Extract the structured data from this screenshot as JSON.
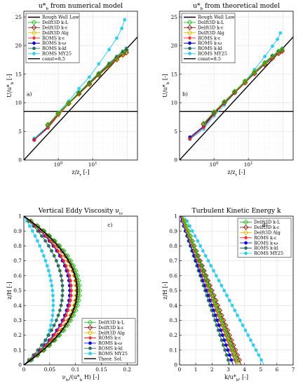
{
  "chart_data": [
    {
      "id": "a",
      "type": "line",
      "xscale": "log",
      "title": "u*_b from numerical model",
      "annotation": "a)",
      "xlabel": "z/z_r [-]",
      "ylabel": "U/u*_b [-]",
      "xlim": [
        0.1,
        200
      ],
      "ylim": [
        0,
        26
      ],
      "xticks": [
        {
          "v": 1,
          "label": "10^0"
        },
        {
          "v": 10,
          "label": "10^1"
        }
      ],
      "yticks": [
        0,
        5,
        10,
        15,
        20,
        25
      ],
      "legend_position": "top-left",
      "legend": [
        {
          "label": "Rough Wall Law",
          "color": "#000000",
          "marker": "none"
        },
        {
          "label": "Delft3D k-L",
          "color": "#22c222",
          "marker": "diamond"
        },
        {
          "label": "Delft3D k-ε",
          "color": "#8b1a1a",
          "marker": "diamond"
        },
        {
          "label": "Delft3D Alg",
          "color": "#e5b800",
          "marker": "diamond"
        },
        {
          "label": "ROMS k-ε",
          "color": "#ff1a1a",
          "marker": "star"
        },
        {
          "label": "ROMS k-ω",
          "color": "#0a0ad8",
          "marker": "circle"
        },
        {
          "label": "ROMS k-kl",
          "color": "#2f6f5f",
          "marker": "circle"
        },
        {
          "label": "ROMS MY25",
          "color": "#33ccf0",
          "marker": "circle"
        },
        {
          "label": "const=8.5",
          "color": "#000000",
          "marker": "none"
        }
      ],
      "series": [
        {
          "name": "Rough Wall Law",
          "x": [
            0.1,
            200
          ],
          "y": [
            0,
            21.5
          ]
        },
        {
          "name": "const=8.5",
          "x": [
            0.1,
            200
          ],
          "y": [
            8.5,
            8.5
          ]
        },
        {
          "name": "ROMS MY25",
          "x": [
            0.2,
            0.5,
            1,
            2,
            4,
            8,
            15,
            30,
            50,
            70,
            85
          ],
          "y": [
            3.8,
            5.9,
            8.3,
            10.3,
            12.5,
            14.5,
            16.8,
            19.3,
            21.3,
            23.0,
            24.5
          ]
        },
        {
          "name": "ROMS k-kl",
          "x": [
            0.2,
            0.5,
            1,
            2,
            4,
            8,
            15,
            30,
            50,
            75,
            95
          ],
          "y": [
            3.6,
            5.8,
            8.0,
            10.0,
            11.8,
            13.6,
            15.2,
            16.9,
            18.1,
            19.0,
            19.5
          ]
        },
        {
          "name": "ROMS k-ω",
          "x": [
            0.2,
            0.5,
            1,
            2,
            4,
            8,
            15,
            30,
            50,
            75,
            95
          ],
          "y": [
            3.5,
            5.7,
            7.9,
            9.9,
            11.7,
            13.5,
            15.1,
            16.7,
            17.9,
            18.8,
            19.2
          ]
        },
        {
          "name": "ROMS k-ε",
          "x": [
            0.2,
            0.5,
            1,
            2,
            4,
            8,
            15,
            30,
            50,
            75,
            95
          ],
          "y": [
            3.5,
            5.6,
            7.8,
            9.8,
            11.6,
            13.4,
            15.0,
            16.6,
            17.8,
            18.6,
            19.0
          ]
        },
        {
          "name": "Delft3D Alg",
          "x": [
            0.5,
            1,
            2,
            4,
            8,
            15,
            30,
            50,
            75,
            95
          ],
          "y": [
            6.0,
            8.0,
            9.8,
            11.5,
            13.2,
            14.8,
            16.4,
            17.5,
            18.3,
            18.7
          ]
        },
        {
          "name": "Delft3D k-ε",
          "x": [
            0.5,
            1,
            2,
            4,
            8,
            15,
            30,
            50,
            75,
            95
          ],
          "y": [
            6.1,
            8.1,
            9.9,
            11.6,
            13.3,
            14.9,
            16.5,
            17.6,
            18.4,
            18.8
          ]
        },
        {
          "name": "Delft3D k-L",
          "x": [
            0.5,
            1,
            2,
            4,
            8,
            15,
            30,
            50,
            75,
            95
          ],
          "y": [
            6.2,
            8.2,
            10.0,
            11.8,
            13.5,
            15.1,
            16.7,
            17.9,
            18.8,
            19.2
          ]
        }
      ]
    },
    {
      "id": "b",
      "type": "line",
      "xscale": "log",
      "title": "u*_b from theoretical model",
      "annotation": "b)",
      "xlabel": "z/z_r [-]",
      "ylabel": "U/u*_b [-]",
      "xlim": [
        0.1,
        200
      ],
      "ylim": [
        0,
        26
      ],
      "xticks": [
        {
          "v": 1,
          "label": "10^0"
        },
        {
          "v": 10,
          "label": "10^1"
        }
      ],
      "yticks": [
        0,
        5,
        10,
        15,
        20,
        25
      ],
      "legend_position": "top-left",
      "legend": [
        {
          "label": "Rough Wall Law",
          "color": "#000000",
          "marker": "none"
        },
        {
          "label": "Delft3D k-L",
          "color": "#22c222",
          "marker": "diamond"
        },
        {
          "label": "Delft3D k-ε",
          "color": "#8b1a1a",
          "marker": "diamond"
        },
        {
          "label": "Delft3D Alg",
          "color": "#e5b800",
          "marker": "diamond"
        },
        {
          "label": "ROMS k-ε",
          "color": "#ff1a1a",
          "marker": "star"
        },
        {
          "label": "ROMS k-ω",
          "color": "#0a0ad8",
          "marker": "circle"
        },
        {
          "label": "ROMS k-kl",
          "color": "#2f6f5f",
          "marker": "circle"
        },
        {
          "label": "ROMS MY25",
          "color": "#33ccf0",
          "marker": "circle"
        },
        {
          "label": "const=8.5",
          "color": "#000000",
          "marker": "none"
        }
      ],
      "series": [
        {
          "name": "Rough Wall Law",
          "x": [
            0.1,
            200
          ],
          "y": [
            0,
            21.5
          ]
        },
        {
          "name": "const=8.5",
          "x": [
            0.1,
            200
          ],
          "y": [
            8.5,
            8.5
          ]
        },
        {
          "name": "ROMS MY25",
          "x": [
            0.2,
            0.5,
            1,
            2,
            4,
            8,
            15,
            30,
            50,
            70,
            85
          ],
          "y": [
            3.6,
            5.4,
            7.7,
            9.6,
            11.7,
            13.7,
            15.8,
            18.1,
            19.9,
            21.1,
            22.2
          ]
        },
        {
          "name": "ROMS k-kl",
          "x": [
            0.2,
            0.5,
            1,
            2,
            4,
            8,
            15,
            30,
            50,
            75,
            95
          ],
          "y": [
            3.8,
            5.8,
            8.1,
            10.1,
            11.9,
            13.8,
            15.4,
            17.1,
            18.2,
            19.0,
            19.4
          ]
        },
        {
          "name": "ROMS k-ω",
          "x": [
            0.2,
            0.5,
            1,
            2,
            4,
            8,
            15,
            30,
            50,
            75,
            95
          ],
          "y": [
            4.0,
            5.9,
            8.2,
            10.1,
            11.9,
            13.7,
            15.3,
            16.9,
            18.1,
            18.9,
            19.2
          ]
        },
        {
          "name": "ROMS k-ε",
          "x": [
            0.2,
            0.5,
            1,
            2,
            4,
            8,
            15,
            30,
            50,
            75,
            95
          ],
          "y": [
            3.7,
            5.7,
            8.0,
            9.9,
            11.7,
            13.5,
            15.2,
            16.8,
            17.9,
            18.7,
            19.0
          ]
        },
        {
          "name": "Delft3D Alg",
          "x": [
            0.5,
            1,
            2,
            4,
            8,
            15,
            30,
            50,
            75,
            95
          ],
          "y": [
            6.3,
            8.3,
            10.1,
            11.9,
            13.6,
            15.2,
            16.8,
            17.9,
            18.7,
            19.1
          ]
        },
        {
          "name": "Delft3D k-ε",
          "x": [
            0.5,
            1,
            2,
            4,
            8,
            15,
            30,
            50,
            75,
            95
          ],
          "y": [
            6.2,
            8.2,
            10.0,
            11.8,
            13.5,
            15.1,
            16.7,
            17.8,
            18.6,
            19.0
          ]
        },
        {
          "name": "Delft3D k-L",
          "x": [
            0.5,
            1,
            2,
            4,
            8,
            15,
            30,
            50,
            75,
            95
          ],
          "y": [
            6.4,
            8.4,
            10.2,
            12.0,
            13.8,
            15.4,
            17.0,
            18.2,
            19.0,
            19.4
          ]
        }
      ]
    },
    {
      "id": "c",
      "type": "line",
      "xscale": "linear",
      "title": "Vertical Eddy Viscosity ν_tv",
      "annotation": "c)",
      "xlabel": "ν_tv/(u*_b H) [-]",
      "ylabel": "z/H [-]",
      "xlim": [
        0,
        0.22
      ],
      "ylim": [
        0,
        1
      ],
      "xticks": [
        {
          "v": 0,
          "label": "0"
        },
        {
          "v": 0.05,
          "label": "0.05"
        },
        {
          "v": 0.1,
          "label": "0.1"
        },
        {
          "v": 0.15,
          "label": "0.15"
        },
        {
          "v": 0.2,
          "label": "0.2"
        }
      ],
      "yticks": [
        0,
        0.1,
        0.2,
        0.3,
        0.4,
        0.5,
        0.6,
        0.7,
        0.8,
        0.9,
        1
      ],
      "legend_position": "bottom-right",
      "legend": [
        {
          "label": "Delft3D k-L",
          "color": "#22c222",
          "marker": "diamond"
        },
        {
          "label": "Delft3D k-ε",
          "color": "#8b1a1a",
          "marker": "diamond"
        },
        {
          "label": "Delft3D Alg",
          "color": "#e5b800",
          "marker": "diamond"
        },
        {
          "label": "ROMS k-ε",
          "color": "#ff1a1a",
          "marker": "star"
        },
        {
          "label": "ROMS k-ω",
          "color": "#0a0ad8",
          "marker": "circle"
        },
        {
          "label": "ROMS k-kl",
          "color": "#2f6f5f",
          "marker": "circle"
        },
        {
          "label": "ROMS MY25",
          "color": "#33ccf0",
          "marker": "circle"
        },
        {
          "label": "Theor. Sol.",
          "color": "#000000",
          "marker": "none"
        }
      ],
      "profiles": [
        {
          "name": "Theor. Sol.",
          "peak": 0.103,
          "power": 1
        },
        {
          "name": "Delft3D k-L",
          "peak": 0.108,
          "power": 1
        },
        {
          "name": "Delft3D k-ε",
          "peak": 0.104,
          "power": 1
        },
        {
          "name": "Delft3D Alg",
          "peak": 0.102,
          "power": 1
        },
        {
          "name": "ROMS k-ε",
          "peak": 0.092,
          "power": 1
        },
        {
          "name": "ROMS k-ω",
          "peak": 0.089,
          "power": 1
        },
        {
          "name": "ROMS k-kl",
          "peak": 0.075,
          "power": 1
        },
        {
          "name": "ROMS MY25",
          "peak": 0.045,
          "power": 0.7
        }
      ]
    },
    {
      "id": "d",
      "type": "line",
      "xscale": "linear",
      "title": "Turbulent Kinetic Energy k",
      "annotation": "d)",
      "xlabel": "k/u*_b² [-]",
      "ylabel": "z/H [-]",
      "xlim": [
        0,
        7
      ],
      "ylim": [
        0,
        1
      ],
      "xticks": [
        {
          "v": 0,
          "label": "0"
        },
        {
          "v": 1,
          "label": "1"
        },
        {
          "v": 2,
          "label": "2"
        },
        {
          "v": 3,
          "label": "3"
        },
        {
          "v": 4,
          "label": "4"
        },
        {
          "v": 5,
          "label": "5"
        },
        {
          "v": 6,
          "label": "6"
        },
        {
          "v": 7,
          "label": "7"
        }
      ],
      "yticks": [
        0,
        0.1,
        0.2,
        0.3,
        0.4,
        0.5,
        0.6,
        0.7,
        0.8,
        0.9,
        1
      ],
      "legend_position": "top-right",
      "legend": [
        {
          "label": "Delft3D k-L",
          "color": "#22c222",
          "marker": "diamond"
        },
        {
          "label": "Delft3D k-ε",
          "color": "#8b1a1a",
          "marker": "diamond"
        },
        {
          "label": "Delft3D Alg",
          "color": "#e5b800",
          "marker": "diamond"
        },
        {
          "label": "ROMS k-ε",
          "color": "#ff1a1a",
          "marker": "star"
        },
        {
          "label": "ROMS k-ω",
          "color": "#0a0ad8",
          "marker": "circle"
        },
        {
          "label": "ROMS k-kl",
          "color": "#2f6f5f",
          "marker": "circle"
        },
        {
          "label": "ROMS MY25",
          "color": "#33ccf0",
          "marker": "circle"
        }
      ],
      "profiles": [
        {
          "name": "ROMS MY25",
          "bottom": 5.2,
          "top": 0.3
        },
        {
          "name": "ROMS k-kl",
          "bottom": 3.1,
          "top": 0.05
        },
        {
          "name": "ROMS k-ω",
          "bottom": 3.3,
          "top": 0.05
        },
        {
          "name": "ROMS k-ε",
          "bottom": 3.5,
          "top": 0.1
        },
        {
          "name": "Delft3D Alg",
          "bottom": 3.7,
          "top": 0.15
        },
        {
          "name": "Delft3D k-ε",
          "bottom": 3.8,
          "top": 0.18
        },
        {
          "name": "Delft3D k-L",
          "bottom": 3.6,
          "top": 0.2
        }
      ]
    }
  ]
}
